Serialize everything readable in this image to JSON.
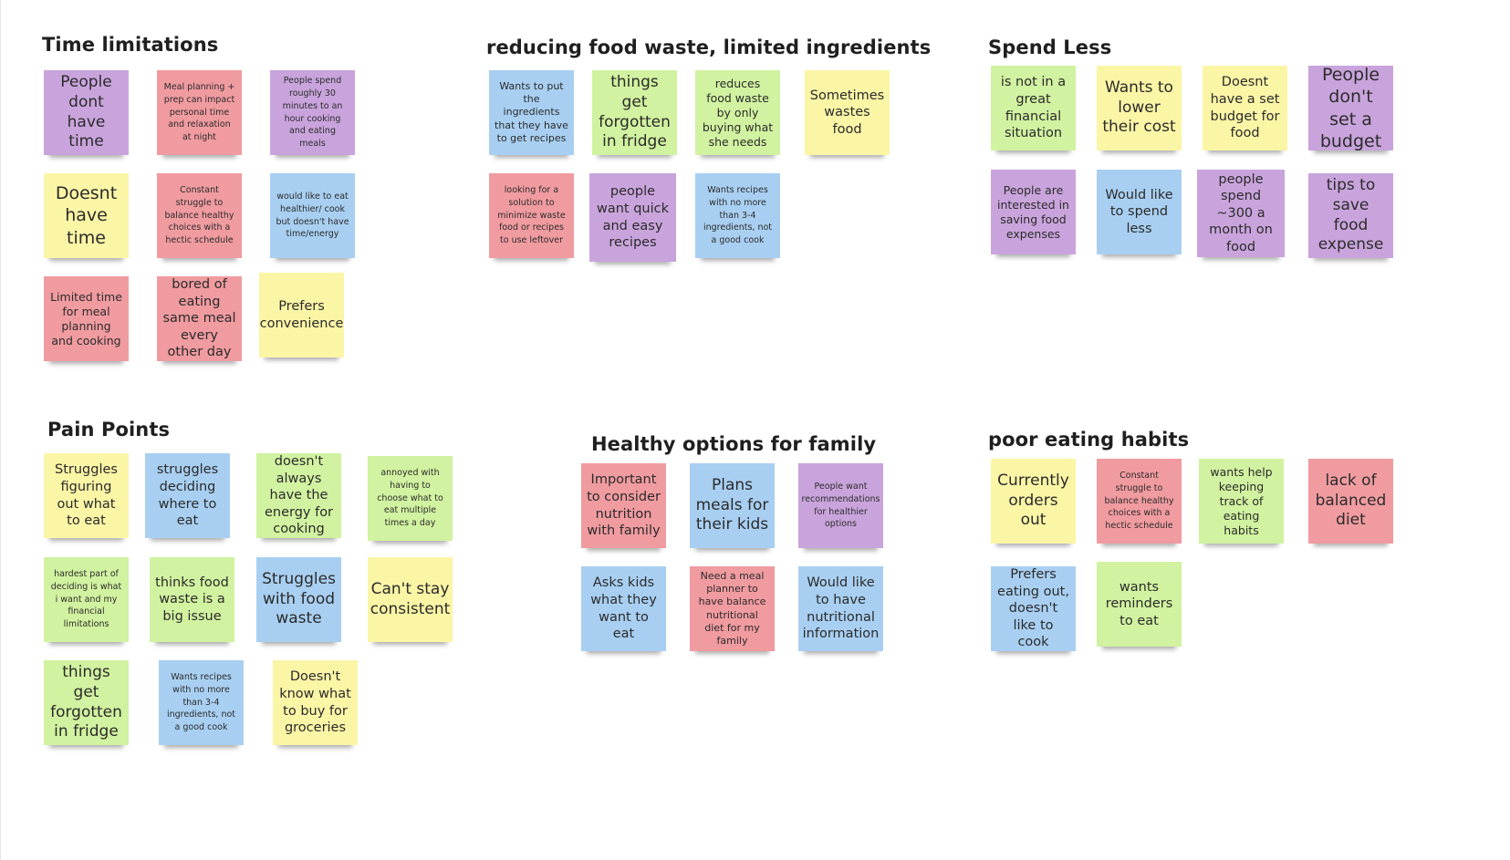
{
  "colors": {
    "purple": "#c9a4dc",
    "red": "#f09ba0",
    "blue": "#a8cff1",
    "yellow": "#fbf5a6",
    "green": "#d1f2a0"
  },
  "groups": {
    "time": {
      "title": "Time limitations",
      "notes": [
        "People dont have time",
        "Meal planning + prep can impact personal time and relaxation at night",
        "People spend roughly 30 minutes to an hour cooking and eating meals",
        "Doesnt have time",
        "Constant struggle to balance healthy choices with a hectic schedule",
        "would like to eat healthier/ cook but doesn't have time/energy",
        "Limited time for meal planning and cooking",
        "bored of eating same meal every other day",
        "Prefers convenience"
      ]
    },
    "waste": {
      "title": "reducing food waste, limited ingredients",
      "notes": [
        "Wants to put the ingredients that they have to get recipes",
        "things get forgotten in fridge",
        "reduces food waste by only buying what she needs",
        "Sometimes wastes food",
        "looking for a solution to minimize waste food or recipes to use leftover",
        "people want quick and easy recipes",
        "Wants recipes with no more than 3-4 ingredients, not a good cook"
      ]
    },
    "spend": {
      "title": "Spend Less",
      "notes": [
        "is not in a great financial situation",
        "Wants to lower their cost",
        "Doesnt have a set budget for food",
        "People don't set a budget",
        "People are interested in saving food expenses",
        "Would like to spend less",
        "people spend ~300 a month on food",
        "tips to save food expense"
      ]
    },
    "pain": {
      "title": "Pain Points",
      "notes": [
        "Struggles figuring out what to eat",
        "struggles deciding where to eat",
        "doesn't always have the energy for cooking",
        "annoyed with having to choose what to eat multiple times a day",
        "hardest part of deciding is what i want and my financial limitations",
        "thinks food waste is a big issue",
        "Struggles with food waste",
        "Can't stay consistent",
        "things get forgotten in fridge",
        "Wants recipes with no more than 3-4 ingredients, not a good cook",
        "Doesn't know what to buy for groceries"
      ]
    },
    "healthy": {
      "title": "Healthy options for family",
      "notes": [
        "Important to consider nutrition with family",
        "Plans meals for their kids",
        "People want recommendations for healthier options",
        "Asks kids what they want to eat",
        "Need a meal planner to have balance nutritional diet for my family",
        "Would like to have nutritional information"
      ]
    },
    "poor": {
      "title": "poor eating habits",
      "notes": [
        "Currently orders out",
        "Constant struggle to balance healthy choices with a hectic schedule",
        "wants help keeping track of eating habits",
        "lack of balanced diet",
        "Prefers eating out, doesn't like to cook",
        "wants reminders to eat"
      ]
    }
  }
}
